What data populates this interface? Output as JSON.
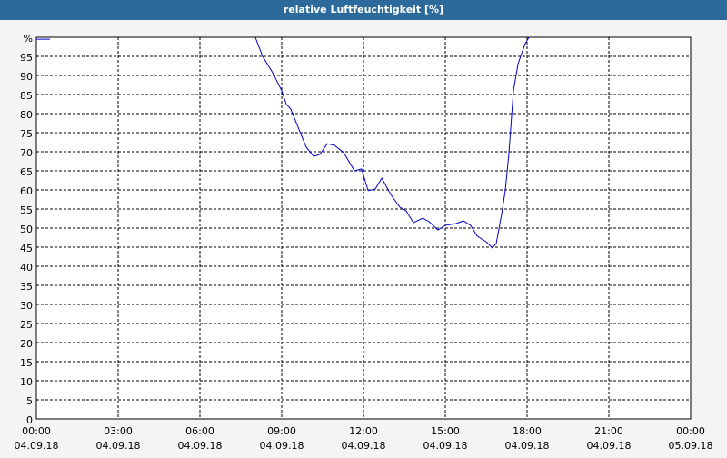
{
  "chart_data": {
    "type": "line",
    "title": "relative Luftfeuchtigkeit [%]",
    "x": [
      0,
      0.5,
      0.93,
      8.03,
      8.3,
      8.67,
      9,
      9.17,
      9.33,
      9.67,
      9.9,
      10.17,
      10.4,
      10.67,
      10.93,
      11.27,
      11.67,
      11.93,
      12.17,
      12.43,
      12.67,
      13,
      13.33,
      13.57,
      13.83,
      14.17,
      14.4,
      14.73,
      15,
      15.4,
      15.67,
      15.93,
      16.17,
      16.5,
      16.73,
      16.87,
      17.07,
      17.2,
      17.33,
      17.5,
      17.67,
      17.93,
      18.07
    ],
    "series": [
      {
        "name": "relative Luftfeuchtigkeit",
        "color": "#0000cc",
        "values": [
          99.5,
          99.5,
          null,
          100,
          95,
          90.7,
          86,
          82.4,
          81.2,
          75.2,
          71.2,
          68.8,
          69.3,
          72.1,
          71.7,
          69.8,
          65,
          65.5,
          59.8,
          60.2,
          63.1,
          58.8,
          55.5,
          54.5,
          51.4,
          52.6,
          51.7,
          49.5,
          50.7,
          51.2,
          51.9,
          50.7,
          47.9,
          46.4,
          44.8,
          46,
          53.8,
          59.8,
          69.3,
          86,
          93.1,
          98.3,
          100
        ]
      }
    ],
    "xlim": [
      0,
      24
    ],
    "xticks": [
      {
        "value": 0,
        "label": "00:00"
      },
      {
        "value": 3,
        "label": "03:00"
      },
      {
        "value": 6,
        "label": "06:00"
      },
      {
        "value": 9,
        "label": "09:00"
      },
      {
        "value": 12,
        "label": "12:00"
      },
      {
        "value": 15,
        "label": "15:00"
      },
      {
        "value": 18,
        "label": "18:00"
      },
      {
        "value": 21,
        "label": "21:00"
      },
      {
        "value": 24,
        "label": "00:00"
      }
    ],
    "xtick_dates": [
      "04.09.18",
      "04.09.18",
      "04.09.18",
      "04.09.18",
      "04.09.18",
      "04.09.18",
      "04.09.18",
      "04.09.18",
      "05.09.18"
    ],
    "ylim": [
      0,
      100
    ],
    "yticks": [
      0,
      5,
      10,
      15,
      20,
      25,
      30,
      35,
      40,
      45,
      50,
      55,
      60,
      65,
      70,
      75,
      80,
      85,
      90,
      95,
      {
        "value": 100,
        "label": "%"
      }
    ],
    "grid": true
  }
}
